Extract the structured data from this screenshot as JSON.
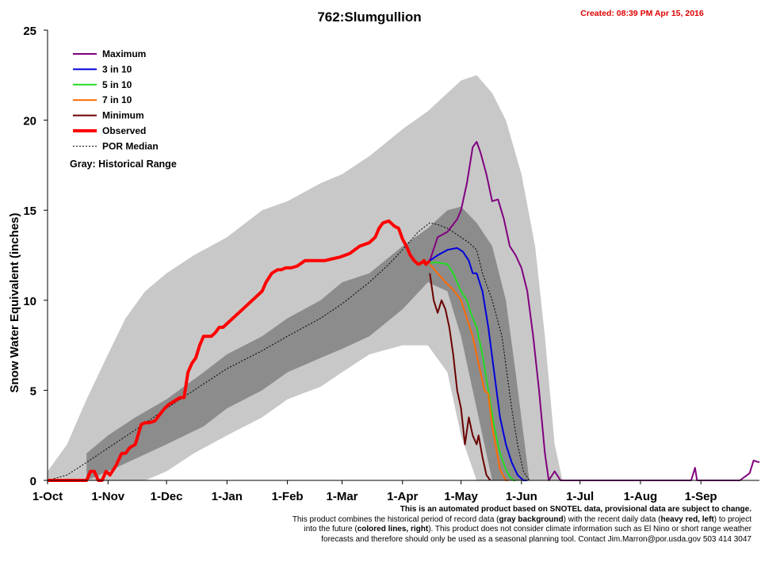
{
  "chart_data": {
    "type": "line",
    "title": "762:Slumgullion",
    "created": "Created: 08:39 PM Apr 15, 2016",
    "ylabel": "Snow Water Equivalent (inches)",
    "xlabel": "",
    "ylim": [
      0,
      25
    ],
    "yticks": [
      0,
      5,
      10,
      15,
      20,
      25
    ],
    "xlim": [
      0,
      365
    ],
    "xticks": [
      {
        "day": 0,
        "label": "1-Oct"
      },
      {
        "day": 31,
        "label": "1-Nov"
      },
      {
        "day": 61,
        "label": "1-Dec"
      },
      {
        "day": 92,
        "label": "1-Jan"
      },
      {
        "day": 123,
        "label": "1-Feb"
      },
      {
        "day": 151,
        "label": "1-Mar"
      },
      {
        "day": 182,
        "label": "1-Apr"
      },
      {
        "day": 212,
        "label": "1-May"
      },
      {
        "day": 243,
        "label": "1-Jun"
      },
      {
        "day": 273,
        "label": "1-Jul"
      },
      {
        "day": 304,
        "label": "1-Aug"
      },
      {
        "day": 335,
        "label": "1-Sep"
      }
    ],
    "legend": [
      {
        "key": "max",
        "label": "Maximum",
        "color": "#800080"
      },
      {
        "key": "p30",
        "label": "3 in 10",
        "color": "#0000dd"
      },
      {
        "key": "p50",
        "label": "5 in 10",
        "color": "#22dd22"
      },
      {
        "key": "p70",
        "label": "7 in 10",
        "color": "#ff6a00"
      },
      {
        "key": "min",
        "label": "Minimum",
        "color": "#6b0000"
      },
      {
        "key": "obs",
        "label": "Observed",
        "color": "#ff0000"
      },
      {
        "key": "median",
        "label": "POR Median",
        "color": "#000000"
      }
    ],
    "legend_note": "Gray: Historical Range",
    "range_outer": {
      "day": [
        0,
        10,
        20,
        31,
        40,
        50,
        61,
        75,
        92,
        110,
        123,
        140,
        151,
        165,
        182,
        195,
        205,
        212,
        220,
        228,
        235,
        243,
        250,
        255,
        260,
        264
      ],
      "upper": [
        0.5,
        2,
        4.5,
        7,
        9,
        10.5,
        11.5,
        12.5,
        13.5,
        15,
        15.5,
        16.5,
        17,
        18,
        19.5,
        20.5,
        21.5,
        22.2,
        22.5,
        21.5,
        20,
        17,
        13,
        8,
        2,
        0
      ],
      "lower": [
        0,
        0,
        0,
        0,
        0,
        0,
        0.5,
        1.5,
        2.5,
        3.5,
        4.5,
        5.2,
        6,
        7,
        7.5,
        7.5,
        6,
        2.5,
        0,
        0,
        0,
        0,
        0,
        0,
        0,
        0
      ]
    },
    "range_inner": {
      "day": [
        20,
        31,
        45,
        61,
        80,
        92,
        110,
        123,
        140,
        151,
        165,
        182,
        195,
        205,
        212,
        220,
        228,
        235,
        240,
        247
      ],
      "upper": [
        1.5,
        2.5,
        3.5,
        4.5,
        6,
        7,
        8,
        9,
        10,
        11,
        11.5,
        13,
        14,
        15,
        15.2,
        14.3,
        13,
        10,
        6,
        0
      ],
      "lower": [
        0,
        0.5,
        1.2,
        2,
        3,
        4,
        5,
        6,
        6.8,
        7.3,
        8,
        9.5,
        11,
        10.5,
        8,
        4,
        0,
        0,
        0,
        0
      ]
    },
    "series": [
      {
        "key": "obs",
        "name": "Observed",
        "day": [
          0,
          10,
          20,
          22,
          24,
          26,
          28,
          30,
          32,
          35,
          38,
          40,
          42,
          45,
          48,
          50,
          52,
          55,
          60,
          62,
          65,
          68,
          70,
          72,
          74,
          76,
          78,
          80,
          82,
          84,
          86,
          88,
          90,
          95,
          100,
          105,
          110,
          112,
          115,
          118,
          120,
          122,
          125,
          128,
          132,
          138,
          142,
          146,
          150,
          155,
          160,
          165,
          168,
          170,
          172,
          175,
          178,
          180,
          182,
          184,
          186,
          188,
          190,
          192,
          193,
          194,
          196
        ],
        "values": [
          0,
          0,
          0,
          0.5,
          0.5,
          0,
          0,
          0.5,
          0.3,
          0.8,
          1.5,
          1.5,
          1.8,
          2,
          3.1,
          3.2,
          3.2,
          3.3,
          4,
          4.2,
          4.4,
          4.6,
          4.6,
          6,
          6.5,
          6.8,
          7.5,
          8,
          8,
          8,
          8.2,
          8.5,
          8.5,
          9,
          9.5,
          10,
          10.5,
          11,
          11.5,
          11.7,
          11.7,
          11.8,
          11.8,
          11.9,
          12.2,
          12.2,
          12.2,
          12.3,
          12.4,
          12.6,
          13,
          13.2,
          13.5,
          14,
          14.3,
          14.4,
          14.1,
          14,
          13.4,
          13,
          12.5,
          12.2,
          12,
          12.1,
          12.2,
          12,
          12.2
        ]
      },
      {
        "key": "median",
        "name": "POR Median",
        "day": [
          0,
          10,
          20,
          31,
          45,
          61,
          75,
          92,
          110,
          123,
          140,
          151,
          165,
          175,
          182,
          190,
          196,
          200,
          205,
          212,
          216,
          220,
          223,
          228,
          233,
          238,
          241,
          244,
          247
        ],
        "values": [
          0,
          0.3,
          1,
          1.8,
          2.8,
          4,
          5,
          6.2,
          7.2,
          8,
          9,
          9.8,
          11,
          12,
          12.8,
          13.8,
          14.3,
          14.2,
          14,
          13.5,
          13.2,
          12.8,
          11.5,
          10,
          8,
          4,
          2,
          0.5,
          0
        ]
      },
      {
        "key": "max",
        "name": "Maximum",
        "day": [
          196,
          200,
          205,
          210,
          212,
          215,
          218,
          220,
          222,
          225,
          228,
          231,
          234,
          237,
          240,
          243,
          246,
          249,
          252,
          255,
          257,
          260,
          263,
          265,
          267,
          270,
          330,
          332,
          333,
          355,
          360,
          362,
          365
        ],
        "values": [
          12.2,
          13.5,
          13.8,
          14.5,
          15,
          16.5,
          18.5,
          18.8,
          18.2,
          17,
          15.5,
          15.6,
          14.5,
          13,
          12.5,
          11.8,
          10.5,
          8,
          5,
          1.5,
          0,
          0.5,
          0,
          0,
          0,
          0,
          0,
          0.7,
          0,
          0,
          0.4,
          1.1,
          1
        ]
      },
      {
        "key": "p30",
        "name": "3 in 10",
        "day": [
          196,
          200,
          205,
          210,
          213,
          216,
          218,
          220,
          223,
          226,
          229,
          232,
          235,
          238,
          241,
          244,
          246
        ],
        "values": [
          12.2,
          12.5,
          12.8,
          12.9,
          12.7,
          12.2,
          11.5,
          11.5,
          10.5,
          8.5,
          6,
          3.5,
          2,
          1,
          0.3,
          0,
          0
        ]
      },
      {
        "key": "p50",
        "name": "5 in 10",
        "day": [
          196,
          200,
          205,
          208,
          212,
          215,
          217,
          220,
          223,
          226,
          229,
          232,
          235,
          237,
          239,
          240
        ],
        "values": [
          12.1,
          12.1,
          12,
          11.5,
          10.5,
          10,
          9.3,
          8.5,
          7,
          5,
          3,
          1.5,
          0.6,
          0.2,
          0,
          0
        ]
      },
      {
        "key": "p70",
        "name": "7 in 10",
        "day": [
          196,
          200,
          204,
          208,
          212,
          215,
          218,
          221,
          224,
          226,
          228,
          230,
          232,
          234,
          235,
          236
        ],
        "values": [
          12,
          11.5,
          11,
          10.6,
          10,
          9,
          8,
          6.5,
          5,
          4.8,
          3,
          1.8,
          0.6,
          0.2,
          0,
          0
        ]
      },
      {
        "key": "min",
        "name": "Minimum",
        "day": [
          196,
          198,
          200,
          202,
          204,
          206,
          208,
          210,
          212,
          214,
          216,
          218,
          220,
          221,
          223,
          225,
          227
        ],
        "values": [
          11.5,
          10,
          9.3,
          10,
          9.5,
          8.5,
          7,
          5,
          4,
          2,
          3.5,
          2.5,
          2,
          2.5,
          1.3,
          0.3,
          0
        ]
      }
    ]
  },
  "footnote": {
    "line1": "This is an automated product based on SNOTEL data, provisional data are subject to change.",
    "line2a": "This product combines the historical period of record data (",
    "line2b": "gray background",
    "line2c": ") with the recent daily data (",
    "line2d": "heavy red, left",
    "line2e": ") to project",
    "line3a": "into the future (",
    "line3b": "colored lines, right",
    "line3c": "). This product does not consider climate information such as El Nino  or short range weather",
    "line4": "forecasts and therefore should only be used as a seasonal planning tool. Contact Jim.Marron@por.usda.gov 503 414 3047"
  },
  "colors": {
    "outer_range": "#c8c8c8",
    "inner_range": "#8c8c8c",
    "created": "#e00000"
  }
}
